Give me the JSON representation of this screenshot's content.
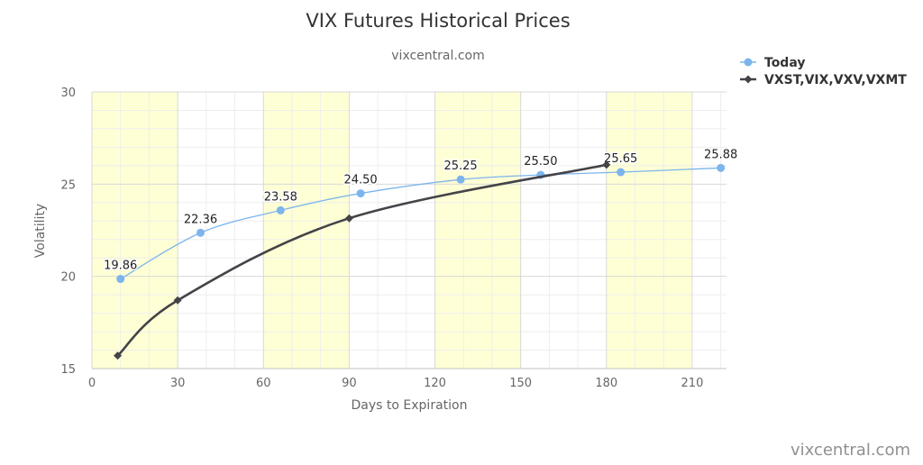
{
  "chart_data": {
    "type": "line",
    "title": "VIX Futures Historical Prices",
    "subtitle": "vixcentral.com",
    "xlabel": "Days to Expiration",
    "ylabel": "Volatility",
    "xlim": [
      0,
      222
    ],
    "ylim": [
      15,
      30
    ],
    "x_ticks": [
      0,
      30,
      60,
      90,
      120,
      150,
      180,
      210
    ],
    "y_ticks": [
      15,
      20,
      25,
      30
    ],
    "grid": true,
    "shaded_bands": [
      [
        0,
        30
      ],
      [
        60,
        90
      ],
      [
        120,
        150
      ],
      [
        180,
        210
      ]
    ],
    "legend_position": "top-right",
    "credit": "vixcentral.com",
    "series": [
      {
        "name": "Today",
        "color": "#7cb5ec",
        "marker": "circle",
        "show_data_labels": true,
        "points": [
          {
            "x": 10,
            "y": 19.86,
            "label": "19.86"
          },
          {
            "x": 38,
            "y": 22.36,
            "label": "22.36"
          },
          {
            "x": 66,
            "y": 23.58,
            "label": "23.58"
          },
          {
            "x": 94,
            "y": 24.5,
            "label": "24.50"
          },
          {
            "x": 129,
            "y": 25.25,
            "label": "25.25"
          },
          {
            "x": 157,
            "y": 25.5,
            "label": "25.50"
          },
          {
            "x": 185,
            "y": 25.65,
            "label": "25.65"
          },
          {
            "x": 220,
            "y": 25.88,
            "label": "25.88"
          }
        ]
      },
      {
        "name": "VXST,VIX,VXV,VXMT",
        "color": "#434348",
        "marker": "diamond",
        "show_data_labels": false,
        "points": [
          {
            "x": 9,
            "y": 15.7
          },
          {
            "x": 30,
            "y": 18.7
          },
          {
            "x": 90,
            "y": 23.15
          },
          {
            "x": 180,
            "y": 26.05
          }
        ]
      }
    ]
  },
  "colors": {
    "band": "#ffffd5",
    "grid_major": "#d8d8d8",
    "grid_minor": "#eeeeee",
    "title": "#333333",
    "subtitle": "#666666",
    "axis_text": "#666666",
    "credit": "#909090"
  }
}
